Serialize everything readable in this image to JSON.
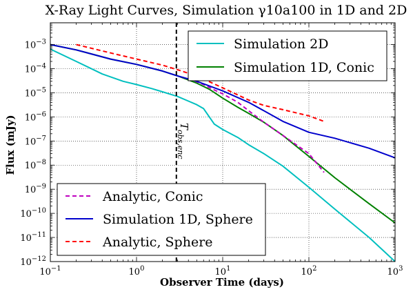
{
  "chart_data": {
    "type": "line",
    "title": "X-Ray Light Curves, Simulation γ10a100 in 1D and 2D",
    "xlabel": "Observer Time (days)",
    "ylabel": "Flux (mJy)",
    "xscale": "log",
    "yscale": "log",
    "xlim": [
      0.1,
      1000
    ],
    "ylim": [
      1e-12,
      0.008
    ],
    "grid": true,
    "x_ticks": [
      {
        "value": 0.1,
        "base": "10",
        "exp": "−1"
      },
      {
        "value": 1,
        "base": "10",
        "exp": "0"
      },
      {
        "value": 10,
        "base": "10",
        "exp": "1"
      },
      {
        "value": 100,
        "base": "10",
        "exp": "2"
      },
      {
        "value": 1000,
        "base": "10",
        "exp": "3"
      }
    ],
    "y_ticks": [
      {
        "value": 1e-12,
        "base": "10",
        "exp": "−12"
      },
      {
        "value": 1e-11,
        "base": "10",
        "exp": "−11"
      },
      {
        "value": 1e-10,
        "base": "10",
        "exp": "−10"
      },
      {
        "value": 1e-09,
        "base": "10",
        "exp": "−9"
      },
      {
        "value": 1e-08,
        "base": "10",
        "exp": "−8"
      },
      {
        "value": 1e-07,
        "base": "10",
        "exp": "−7"
      },
      {
        "value": 1e-06,
        "base": "10",
        "exp": "−6"
      },
      {
        "value": 1e-05,
        "base": "10",
        "exp": "−5"
      },
      {
        "value": 0.0001,
        "base": "10",
        "exp": "−4"
      },
      {
        "value": 0.001,
        "base": "10",
        "exp": "−3"
      }
    ],
    "vline": {
      "x": 2.9,
      "label": "T_obs,enc",
      "label_main": "T",
      "label_sub": "obs,enc",
      "color": "#000000",
      "style": "dashed"
    },
    "legends": [
      {
        "placement": "upper-right",
        "entries": [
          "Simulation 2D",
          "Simulation 1D, Conic"
        ]
      },
      {
        "placement": "lower-left",
        "entries": [
          "Analytic, Conic",
          "Simulation 1D, Sphere",
          "Analytic, Sphere"
        ]
      }
    ],
    "series": [
      {
        "name": "Simulation 2D",
        "color": "#00bfbf",
        "style": "solid",
        "x": [
          0.1,
          0.2,
          0.4,
          0.7,
          1.0,
          1.5,
          2.0,
          3.0,
          4.0,
          5.0,
          6.0,
          7.0,
          8.0,
          10.0,
          15.0,
          20.0,
          30.0,
          50.0,
          100.0,
          200.0,
          500.0,
          1000.0
        ],
        "y": [
          0.00065,
          0.0002,
          6e-05,
          3e-05,
          2.2e-05,
          1.5e-05,
          1.1e-05,
          7e-06,
          4.5e-06,
          3.2e-06,
          2.2e-06,
          1e-06,
          5e-07,
          3e-07,
          1.4e-07,
          7e-08,
          3e-08,
          9e-09,
          1.2e-09,
          1.5e-10,
          1e-11,
          1e-12
        ]
      },
      {
        "name": "Simulation 1D, Conic",
        "color": "#008000",
        "style": "solid",
        "x": [
          0.1,
          0.2,
          0.5,
          1.0,
          2.0,
          3.0,
          5.0,
          7.0,
          10.0,
          15.0,
          20.0,
          30.0,
          50.0,
          100.0,
          200.0,
          500.0,
          1000.0
        ],
        "y": [
          0.001,
          0.0006,
          0.00025,
          0.00015,
          8e-05,
          5e-05,
          2.5e-05,
          1.4e-05,
          6e-06,
          2.5e-06,
          1.4e-06,
          6e-07,
          1.7e-07,
          2.3e-08,
          3e-09,
          2.5e-10,
          4e-11
        ]
      },
      {
        "name": "Analytic, Conic",
        "color": "#bf00bf",
        "style": "dashed",
        "x": [
          4.0,
          6.0,
          8.0,
          10.0,
          15.0,
          20.0,
          30.0,
          50.0,
          100.0,
          150.0
        ],
        "y": [
          4e-05,
          2.2e-05,
          1.3e-05,
          9e-06,
          4e-06,
          1.8e-06,
          6e-07,
          1.7e-07,
          3e-08,
          5e-09
        ]
      },
      {
        "name": "Simulation 1D, Sphere",
        "color": "#0000cc",
        "style": "solid",
        "x": [
          0.1,
          0.2,
          0.5,
          1.0,
          2.0,
          3.0,
          5.0,
          10.0,
          20.0,
          30.0,
          50.0,
          100.0,
          200.0,
          500.0,
          1000.0
        ],
        "y": [
          0.001,
          0.0006,
          0.00025,
          0.00015,
          8e-05,
          5e-05,
          3e-05,
          1.2e-05,
          4e-06,
          1.8e-06,
          6.5e-07,
          2.3e-07,
          1.3e-07,
          5e-08,
          2e-08
        ]
      },
      {
        "name": "Analytic, Sphere",
        "color": "#ff0000",
        "style": "dashed",
        "x": [
          0.2,
          0.5,
          1.0,
          2.0,
          3.0,
          5.0,
          10.0,
          20.0,
          30.0,
          50.0,
          100.0,
          150.0
        ],
        "y": [
          0.001,
          0.00045,
          0.00025,
          0.00014,
          9e-05,
          5e-05,
          1.6e-05,
          5e-06,
          3e-06,
          2e-06,
          1.1e-06,
          6.5e-07
        ]
      }
    ]
  }
}
